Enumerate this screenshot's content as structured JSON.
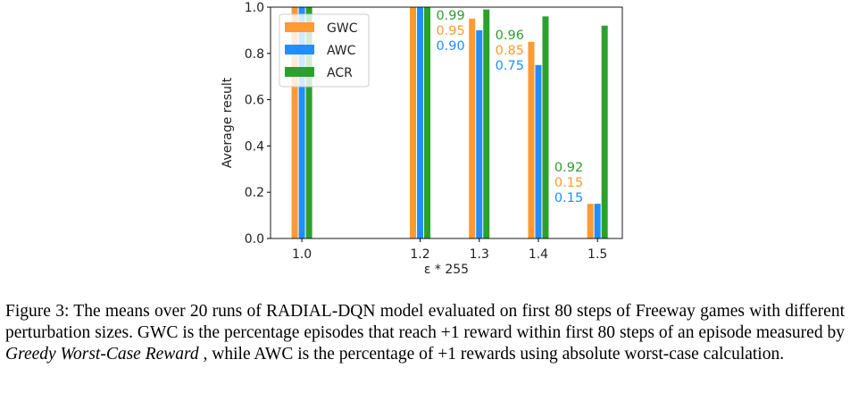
{
  "chart_data": {
    "type": "bar",
    "xlabel": "ε * 255",
    "ylabel": "Average result",
    "x": [
      1.0,
      1.2,
      1.3,
      1.4,
      1.5
    ],
    "x_tick_labels": [
      "1.0",
      "1.2",
      "1.3",
      "1.4",
      "1.5"
    ],
    "xlim": [
      0.947,
      1.542
    ],
    "ylim": [
      0,
      1.0
    ],
    "y_ticks": [
      0.0,
      0.2,
      0.4,
      0.6,
      0.8,
      1.0
    ],
    "y_tick_labels": [
      "0.0",
      "0.2",
      "0.4",
      "0.6",
      "0.8",
      "1.0"
    ],
    "grid": false,
    "legend_placement": "top-left",
    "series": [
      {
        "name": "GWC",
        "color": "#ff9933",
        "values": [
          1.0,
          1.0,
          0.95,
          0.85,
          0.15
        ]
      },
      {
        "name": "AWC",
        "color": "#1f8fff",
        "values": [
          1.0,
          1.0,
          0.9,
          0.75,
          0.15
        ]
      },
      {
        "name": "ACR",
        "color": "#2ca02c",
        "values": [
          1.0,
          1.0,
          0.99,
          0.96,
          0.92
        ]
      }
    ],
    "annotations": [
      {
        "x": 1.3,
        "lines": [
          {
            "text": "0.99",
            "color": "#2ca02c"
          },
          {
            "text": "0.95",
            "color": "#ff9933"
          },
          {
            "text": "0.90",
            "color": "#1f8fff"
          }
        ]
      },
      {
        "x": 1.4,
        "lines": [
          {
            "text": "0.96",
            "color": "#2ca02c"
          },
          {
            "text": "0.85",
            "color": "#ff9933"
          },
          {
            "text": "0.75",
            "color": "#1f8fff"
          }
        ]
      },
      {
        "x": 1.5,
        "lines": [
          {
            "text": "0.92",
            "color": "#2ca02c"
          },
          {
            "text": "0.15",
            "color": "#ff9933"
          },
          {
            "text": "0.15",
            "color": "#1f8fff"
          }
        ]
      }
    ]
  },
  "caption": {
    "prefix": "Figure 3: The means over 20 runs of RADIAL-DQN model evaluated on first 80 steps of Freeway games with different perturbation sizes. GWC is the percentage episodes that reach +1 reward within first 80 steps of an episode measured by ",
    "emph": "Greedy Worst-Case Reward",
    "suffix": " , while AWC is the percentage of +1 rewards using absolute worst-case calculation."
  }
}
